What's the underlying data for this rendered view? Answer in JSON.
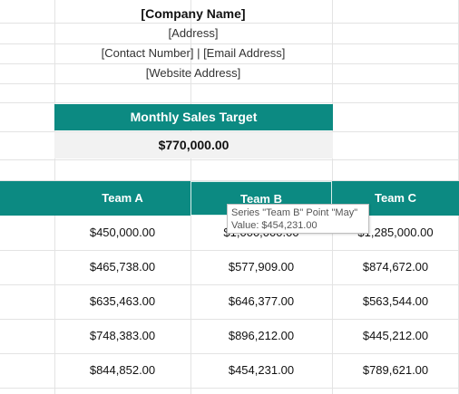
{
  "header": {
    "company_name": "[Company Name]",
    "address": "[Address]",
    "contact_line": "[Contact Number] | [Email Address]",
    "website": "[Website Address]"
  },
  "target": {
    "label": "Monthly Sales Target",
    "value": "$770,000.00"
  },
  "table": {
    "columns": [
      "Team A",
      "Team B",
      "Team C"
    ],
    "rows": [
      [
        "$450,000.00",
        "$1,000,000.00",
        "$1,285,000.00"
      ],
      [
        "$465,738.00",
        "$577,909.00",
        "$874,672.00"
      ],
      [
        "$635,463.00",
        "$646,377.00",
        "$563,544.00"
      ],
      [
        "$748,383.00",
        "$896,212.00",
        "$445,212.00"
      ],
      [
        "$844,852.00",
        "$454,231.00",
        "$789,621.00"
      ]
    ]
  },
  "tooltip": {
    "line1": "Series \"Team B\" Point \"May\"",
    "line2": "Value: $454,231.00"
  },
  "colors": {
    "accent": "#0c8a82",
    "target_value_bg": "#f2f2f2"
  }
}
